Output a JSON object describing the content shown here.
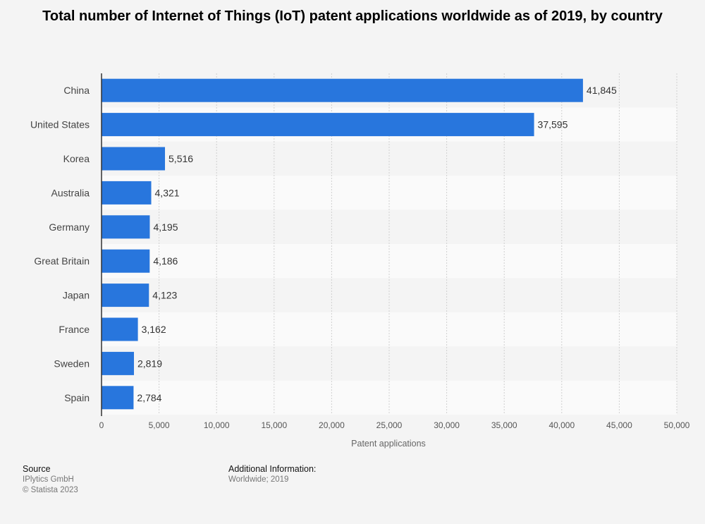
{
  "chart_data": {
    "type": "bar",
    "orientation": "horizontal",
    "title": "Total number of Internet of Things (IoT) patent applications worldwide as of 2019, by country",
    "categories": [
      "China",
      "United States",
      "Korea",
      "Australia",
      "Germany",
      "Great Britain",
      "Japan",
      "France",
      "Sweden",
      "Spain"
    ],
    "values": [
      41845,
      37595,
      5516,
      4321,
      4195,
      4186,
      4123,
      3162,
      2819,
      2784
    ],
    "value_labels": [
      "41,845",
      "37,595",
      "5,516",
      "4,321",
      "4,195",
      "4,186",
      "4,123",
      "3,162",
      "2,819",
      "2,784"
    ],
    "xlabel": "Patent applications",
    "ylabel": "",
    "xlim": [
      0,
      50000
    ],
    "xticks": [
      0,
      5000,
      10000,
      15000,
      20000,
      25000,
      30000,
      35000,
      40000,
      45000,
      50000
    ],
    "xtick_labels": [
      "0",
      "5,000",
      "10,000",
      "15,000",
      "20,000",
      "25,000",
      "30,000",
      "35,000",
      "40,000",
      "45,000",
      "50,000"
    ],
    "bar_color": "#2876dd",
    "grid": true
  },
  "footer": {
    "source_heading": "Source",
    "source_lines": [
      "IPlytics GmbH",
      "© Statista 2023"
    ],
    "info_heading": "Additional Information:",
    "info_lines": [
      "Worldwide; 2019"
    ]
  }
}
